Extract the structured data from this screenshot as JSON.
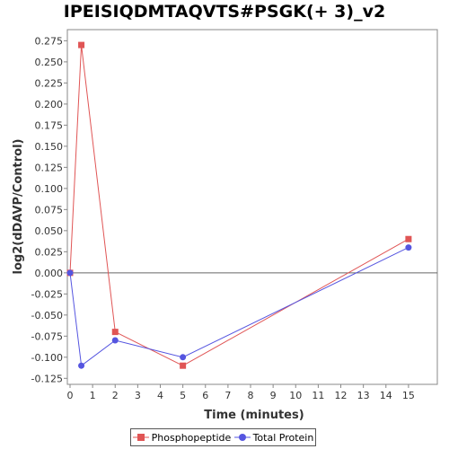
{
  "chart_data": {
    "type": "line",
    "title": "IPEISIQDMTAQVTS#PSGK(+ 3)_v2",
    "xlabel": "Time (minutes)",
    "ylabel": "log2(dDAVP/Control)",
    "xlim": [
      0,
      15.8
    ],
    "ylim": [
      -0.13,
      0.285
    ],
    "xticks": [
      0,
      1,
      2,
      3,
      4,
      5,
      6,
      7,
      8,
      9,
      10,
      11,
      12,
      13,
      14,
      15
    ],
    "yticks": [
      -0.125,
      -0.1,
      -0.075,
      -0.05,
      -0.025,
      0.0,
      0.025,
      0.05,
      0.075,
      0.1,
      0.125,
      0.15,
      0.175,
      0.2,
      0.225,
      0.25,
      0.275
    ],
    "ytick_labels": [
      "-0.125",
      "-0.100",
      "-0.075",
      "-0.050",
      "-0.025",
      "0.000",
      "0.025",
      "0.050",
      "0.075",
      "0.100",
      "0.125",
      "0.150",
      "0.175",
      "0.200",
      "0.225",
      "0.250",
      "0.275"
    ],
    "zero_line": true,
    "legend_position": "bottom-center",
    "series": [
      {
        "name": "Phosphopeptide",
        "color": "#e05555",
        "marker": "square",
        "x": [
          0,
          0.5,
          2,
          5,
          15
        ],
        "y": [
          0.0,
          0.27,
          -0.07,
          -0.11,
          0.04
        ]
      },
      {
        "name": "Total Protein",
        "color": "#5555e0",
        "marker": "circle",
        "x": [
          0,
          0.5,
          2,
          5,
          15
        ],
        "y": [
          0.0,
          -0.11,
          -0.08,
          -0.1,
          0.03
        ]
      }
    ]
  }
}
